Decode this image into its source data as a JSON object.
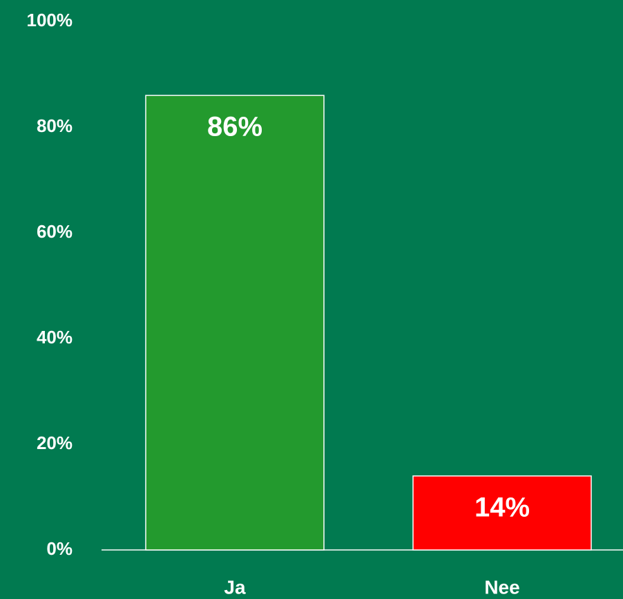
{
  "chart_data": {
    "type": "bar",
    "categories": [
      "Ja",
      "Nee"
    ],
    "values": [
      86,
      14
    ],
    "value_labels": [
      "86%",
      "14%"
    ],
    "colors": [
      "#239a2e",
      "#ff0000"
    ],
    "ylim": [
      0,
      100
    ],
    "yticks": [
      {
        "value": 0,
        "label": "0%"
      },
      {
        "value": 20,
        "label": "20%"
      },
      {
        "value": 40,
        "label": "40%"
      },
      {
        "value": 60,
        "label": "60%"
      },
      {
        "value": 80,
        "label": "80%"
      },
      {
        "value": 100,
        "label": "100%"
      }
    ],
    "grid": false
  }
}
